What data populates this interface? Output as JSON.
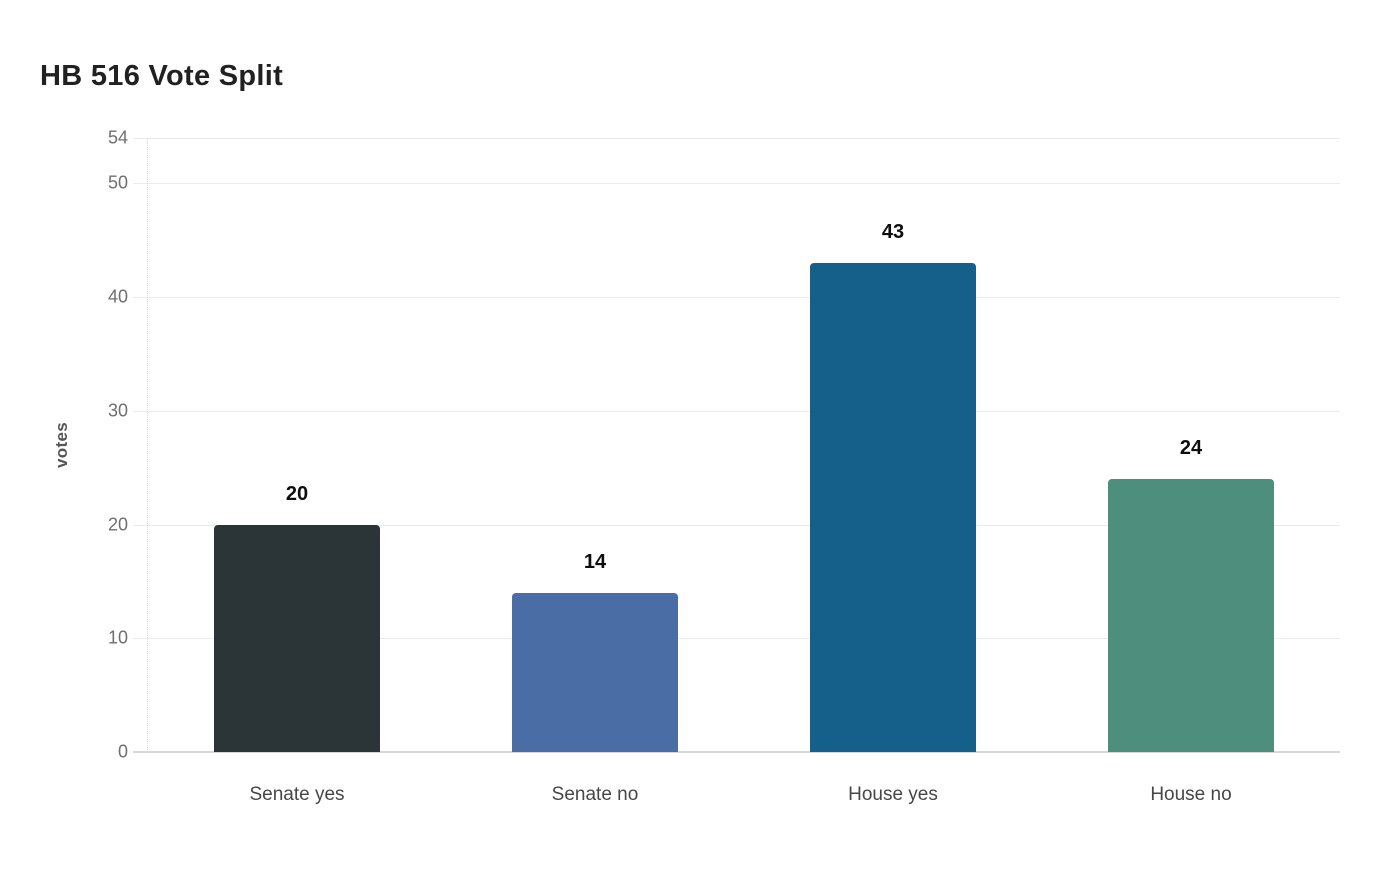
{
  "page": {
    "background": "#ffffff"
  },
  "chart_data": {
    "type": "bar",
    "title": "HB 516 Vote Split",
    "xlabel": "",
    "ylabel": "votes",
    "categories": [
      "Senate yes",
      "Senate no",
      "House yes",
      "House no"
    ],
    "values": [
      20,
      14,
      43,
      24
    ],
    "value_labels": [
      "20",
      "14",
      "43",
      "24"
    ],
    "bar_colors": [
      "#2b3436",
      "#4a6da6",
      "#15608a",
      "#4d8e7c"
    ],
    "ylim": [
      0,
      54
    ],
    "yticks": [
      0,
      10,
      20,
      30,
      40,
      50,
      54
    ],
    "grid": true,
    "legend_position": "none",
    "text_colors": {
      "title": "#212121",
      "tick_labels": "#6f6f6f",
      "category_labels": "#474747",
      "value_labels": "#0d0d0d",
      "axis_label": "#555555"
    },
    "line_colors": {
      "gridline": "#ececec",
      "baseline": "#d7d7d7",
      "axis_dotted": "#d9d9d9"
    }
  }
}
